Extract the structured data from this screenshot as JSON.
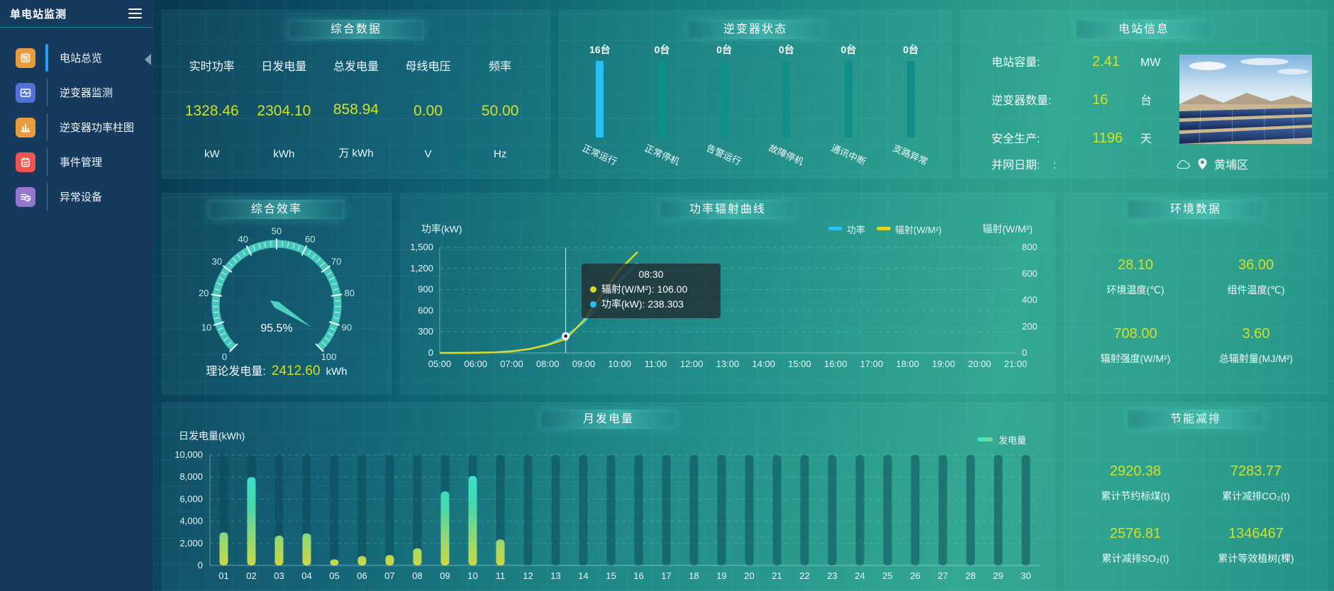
{
  "app": {
    "title": "单电站监测"
  },
  "sidebar": {
    "items": [
      {
        "label": "电站总览",
        "active": true,
        "icon": "plant-overview",
        "color": "#e89c3c"
      },
      {
        "label": "逆变器监测",
        "active": false,
        "icon": "inverter-monitor",
        "color": "#5170d8"
      },
      {
        "label": "逆变器功率柱图",
        "active": false,
        "icon": "inverter-power-bars",
        "color": "#e89c3c"
      },
      {
        "label": "事件管理",
        "active": false,
        "icon": "event-management",
        "color": "#ef5350"
      },
      {
        "label": "异常设备",
        "active": false,
        "icon": "abnormal-device",
        "color": "#9575cd"
      }
    ]
  },
  "overview": {
    "title": "综合数据",
    "metrics": [
      {
        "label": "实时功率",
        "value": "1328.46",
        "unit": "kW"
      },
      {
        "label": "日发电量",
        "value": "2304.10",
        "unit": "kWh"
      },
      {
        "label": "总发电量",
        "value": "858.94",
        "unit": "万 kWh"
      },
      {
        "label": "母线电压",
        "value": "0.00",
        "unit": "V"
      },
      {
        "label": "频率",
        "value": "50.00",
        "unit": "Hz"
      }
    ]
  },
  "inverter_status": {
    "title": "逆变器状态",
    "bars": [
      {
        "count": "16台",
        "label": "正常运行",
        "active": true
      },
      {
        "count": "0台",
        "label": "正常停机",
        "active": false
      },
      {
        "count": "0台",
        "label": "告警运行",
        "active": false
      },
      {
        "count": "0台",
        "label": "故障停机",
        "active": false
      },
      {
        "count": "0台",
        "label": "通讯中断",
        "active": false
      },
      {
        "count": "0台",
        "label": "支路异常",
        "active": false
      }
    ]
  },
  "station_info": {
    "title": "电站信息",
    "rows": [
      {
        "label": "电站容量:",
        "value": "2.41",
        "unit": "MW"
      },
      {
        "label": "逆变器数量:",
        "value": "16",
        "unit": "台"
      },
      {
        "label": "安全生产:",
        "value": "1196",
        "unit": "天"
      }
    ],
    "grid_date": {
      "label": "并网日期:",
      "value": ":"
    },
    "location": "黄埔区"
  },
  "efficiency": {
    "title": "综合效率",
    "theory_label": "理论发电量:",
    "theory_value": "2412.60",
    "theory_unit": "kWh"
  },
  "power_radiation": {
    "title": "功率辐射曲线",
    "tooltip": {
      "time": "08:30",
      "rows": [
        {
          "text": "辐射(W/M²): 106.00",
          "color": "#d9d926"
        },
        {
          "text": "功率(kW): 238.303",
          "color": "#29c0f0"
        }
      ]
    }
  },
  "environment": {
    "title": "环境数据",
    "items": [
      {
        "value": "28.10",
        "label": "环境温度(℃)"
      },
      {
        "value": "36.00",
        "label": "组件温度(℃)"
      },
      {
        "value": "708.00",
        "label": "辐射强度(W/M²)"
      },
      {
        "value": "3.60",
        "label": "总辐射量(MJ/M²)"
      }
    ]
  },
  "monthly": {
    "title": "月发电量"
  },
  "energy_saving": {
    "title": "节能减排",
    "items": [
      {
        "value": "2920.38",
        "label": "累计节约标煤(t)"
      },
      {
        "value": "7283.77",
        "label": "累计减排CO₂(t)"
      },
      {
        "value": "2576.81",
        "label": "累计减排SO₂(t)"
      },
      {
        "value": "1346467",
        "label": "累计等效植树(棵)"
      }
    ]
  },
  "colors": {
    "value_yellow": "#d4e021",
    "power_line": "#29c0f0",
    "radiation_line": "#d9d926",
    "active_bar": "#29c0f0",
    "idle_bar": "#0f8f8a",
    "active_menu": "#2e9bf5"
  },
  "chart_data": [
    {
      "id": "efficiency_gauge",
      "type": "gauge",
      "title": "综合效率",
      "value": 95.5,
      "display": "95.5%",
      "min": 0,
      "max": 100,
      "tick_step": 10,
      "start_angle": 225,
      "end_angle": -45
    },
    {
      "id": "power_radiation",
      "type": "line",
      "title": "功率辐射曲线",
      "ylabel_left": "功率(kW)",
      "ylabel_right": "辐射(W/M²)",
      "ylim_left": [
        0,
        1500
      ],
      "ylim_right": [
        0,
        800
      ],
      "ytick_step_left": 300,
      "ytick_step_right": 200,
      "x_ticks": [
        "05:00",
        "06:00",
        "07:00",
        "08:00",
        "09:00",
        "10:00",
        "11:00",
        "12:00",
        "13:00",
        "14:00",
        "15:00",
        "16:00",
        "17:00",
        "18:00",
        "19:00",
        "20:00",
        "21:00"
      ],
      "legend": [
        "功率",
        "辐射(W/M²)"
      ],
      "grid": "dashed-horizontal",
      "series": [
        {
          "name": "功率",
          "axis": "left",
          "color": "#29c0f0",
          "points": [
            [
              5,
              0
            ],
            [
              5.5,
              0
            ],
            [
              6,
              2
            ],
            [
              6.5,
              8
            ],
            [
              7,
              22
            ],
            [
              7.5,
              55
            ],
            [
              8,
              120
            ],
            [
              8.5,
              238.3
            ],
            [
              9,
              430
            ],
            [
              9.5,
              720
            ],
            [
              10,
              1020
            ],
            [
              10.5,
              1280
            ]
          ]
        },
        {
          "name": "辐射(W/M²)",
          "axis": "right",
          "color": "#d9d926",
          "points": [
            [
              5,
              0
            ],
            [
              5.5,
              0
            ],
            [
              6,
              1
            ],
            [
              6.5,
              4
            ],
            [
              7,
              12
            ],
            [
              7.5,
              30
            ],
            [
              8,
              60
            ],
            [
              8.5,
              106
            ],
            [
              9,
              245
            ],
            [
              9.5,
              440
            ],
            [
              10,
              630
            ],
            [
              10.5,
              765
            ]
          ]
        }
      ],
      "highlight": {
        "time": 8.5,
        "time_label": "08:30",
        "power": 238.303,
        "radiation": 106.0
      }
    },
    {
      "id": "monthly_generation",
      "type": "bar",
      "title": "月发电量",
      "ylabel": "日发电量(kWh)",
      "ylim": [
        0,
        10000
      ],
      "ytick_step": 2000,
      "legend": [
        "发电量"
      ],
      "grid": "dashed-horizontal",
      "categories": [
        "01",
        "02",
        "03",
        "04",
        "05",
        "06",
        "07",
        "08",
        "09",
        "10",
        "11",
        "12",
        "13",
        "14",
        "15",
        "16",
        "17",
        "18",
        "19",
        "20",
        "21",
        "22",
        "23",
        "24",
        "25",
        "26",
        "27",
        "28",
        "29",
        "30"
      ],
      "values": [
        3000,
        8000,
        2700,
        2900,
        550,
        850,
        950,
        1550,
        6700,
        8100,
        2350,
        0,
        0,
        0,
        0,
        0,
        0,
        0,
        0,
        0,
        0,
        0,
        0,
        0,
        0,
        0,
        0,
        0,
        0,
        0
      ]
    },
    {
      "id": "inverter_status_bars",
      "type": "bar",
      "title": "逆变器状态",
      "categories": [
        "正常运行",
        "正常停机",
        "告警运行",
        "故障停机",
        "通讯中断",
        "支路异常"
      ],
      "values": [
        16,
        0,
        0,
        0,
        0,
        0
      ],
      "unit": "台"
    }
  ]
}
